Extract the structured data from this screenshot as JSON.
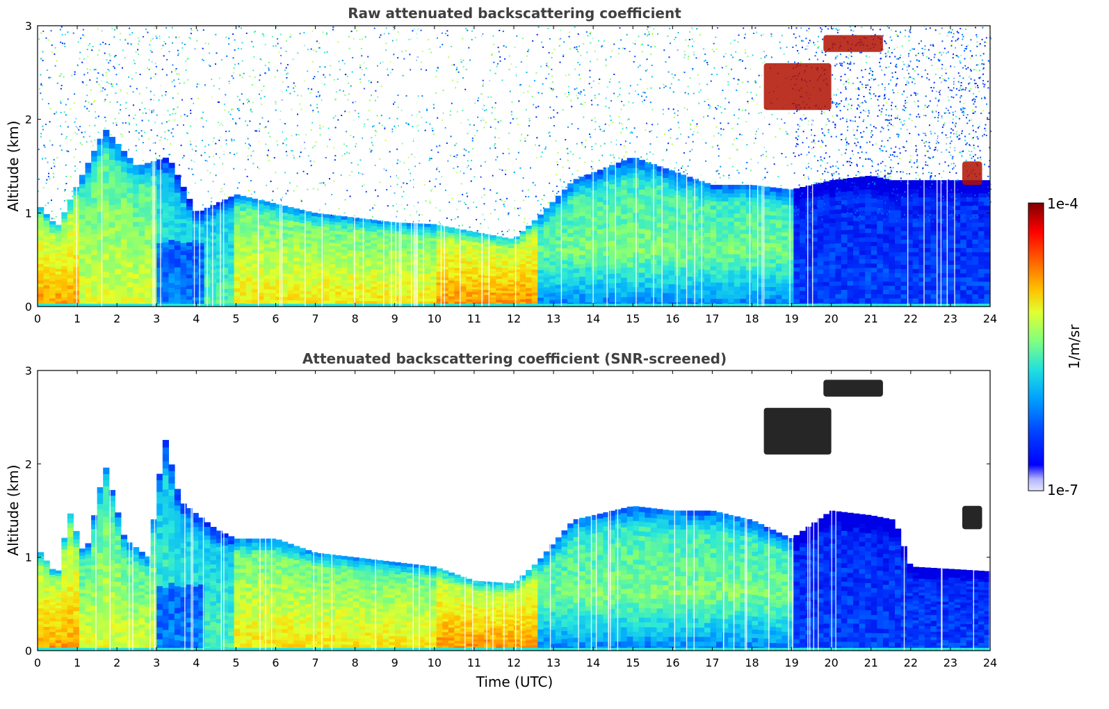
{
  "chart_data": [
    {
      "type": "heatmap",
      "title": "Raw attenuated backscattering coefficient",
      "xlabel": "",
      "ylabel": "Altitude (km)",
      "xlim": [
        0,
        24
      ],
      "ylim": [
        0,
        3
      ],
      "xticks": [
        "0",
        "1",
        "2",
        "3",
        "4",
        "5",
        "6",
        "7",
        "8",
        "9",
        "10",
        "11",
        "12",
        "13",
        "14",
        "15",
        "16",
        "17",
        "18",
        "19",
        "20",
        "21",
        "22",
        "23",
        "24"
      ],
      "yticks": [
        "0",
        "1",
        "2",
        "3"
      ],
      "screened": false,
      "boundary_layer_top_km": [
        [
          0,
          1.1
        ],
        [
          0.5,
          0.85
        ],
        [
          1,
          1.3
        ],
        [
          1.7,
          1.9
        ],
        [
          2.5,
          1.5
        ],
        [
          3.3,
          1.6
        ],
        [
          4,
          1.0
        ],
        [
          5,
          1.2
        ],
        [
          6,
          1.1
        ],
        [
          7,
          1.0
        ],
        [
          8,
          0.95
        ],
        [
          9,
          0.9
        ],
        [
          10,
          0.88
        ],
        [
          11,
          0.8
        ],
        [
          12,
          0.72
        ],
        [
          12.6,
          0.95
        ],
        [
          13.5,
          1.35
        ],
        [
          15,
          1.6
        ],
        [
          16,
          1.45
        ],
        [
          17,
          1.3
        ],
        [
          18,
          1.3
        ],
        [
          19,
          1.25
        ],
        [
          20,
          1.35
        ],
        [
          21,
          1.4
        ],
        [
          21.5,
          1.35
        ]
      ],
      "clouds": [
        {
          "t0": 19.8,
          "t1": 21.3,
          "z0": 2.72,
          "z1": 2.9,
          "level": "high"
        },
        {
          "t0": 18.3,
          "t1": 20.0,
          "z0": 2.1,
          "z1": 2.6,
          "level": "high"
        },
        {
          "t0": 23.3,
          "t1": 23.8,
          "z0": 1.3,
          "z1": 1.55,
          "level": "high"
        }
      ]
    },
    {
      "type": "heatmap",
      "title": "Attenuated backscattering coefficient (SNR-screened)",
      "xlabel": "Time (UTC)",
      "ylabel": "Altitude (km)",
      "xlim": [
        0,
        24
      ],
      "ylim": [
        0,
        3
      ],
      "xticks": [
        "0",
        "1",
        "2",
        "3",
        "4",
        "5",
        "6",
        "7",
        "8",
        "9",
        "10",
        "11",
        "12",
        "13",
        "14",
        "15",
        "16",
        "17",
        "18",
        "19",
        "20",
        "21",
        "22",
        "23",
        "24"
      ],
      "yticks": [
        "0",
        "1",
        "2",
        "3"
      ],
      "screened": true,
      "boundary_layer_top_km": [
        [
          0,
          1.1
        ],
        [
          0.5,
          0.8
        ],
        [
          0.8,
          1.5
        ],
        [
          1.2,
          1.0
        ],
        [
          1.7,
          2.0
        ],
        [
          2.2,
          1.2
        ],
        [
          2.8,
          1.0
        ],
        [
          3.2,
          2.3
        ],
        [
          3.6,
          1.6
        ],
        [
          4.5,
          1.3
        ],
        [
          5,
          1.2
        ],
        [
          6,
          1.2
        ],
        [
          7,
          1.05
        ],
        [
          8,
          1.0
        ],
        [
          9,
          0.95
        ],
        [
          10,
          0.9
        ],
        [
          11,
          0.75
        ],
        [
          12,
          0.72
        ],
        [
          12.6,
          0.95
        ],
        [
          13.5,
          1.4
        ],
        [
          15,
          1.55
        ],
        [
          16,
          1.5
        ],
        [
          17,
          1.5
        ],
        [
          18,
          1.4
        ],
        [
          19,
          1.2
        ],
        [
          20,
          1.5
        ],
        [
          21,
          1.45
        ],
        [
          21.6,
          1.4
        ],
        [
          22,
          0.9
        ],
        [
          24,
          0.85
        ]
      ],
      "clouds": [
        {
          "t0": 19.8,
          "t1": 21.3,
          "z0": 2.72,
          "z1": 2.9,
          "level": "saturated"
        },
        {
          "t0": 18.3,
          "t1": 20.0,
          "z0": 2.1,
          "z1": 2.6,
          "level": "saturated"
        },
        {
          "t0": 23.3,
          "t1": 23.8,
          "z0": 1.3,
          "z1": 1.55,
          "level": "saturated"
        }
      ]
    }
  ],
  "colorbar": {
    "label": "1/m/sr",
    "max_label": "1e-4",
    "min_label": "1e-7",
    "colors": [
      "#7f0000",
      "#ff0000",
      "#ff8000",
      "#ffd700",
      "#b0f040",
      "#40f0c0",
      "#00bfff",
      "#0050ff",
      "#0000e6",
      "#e0e0ff"
    ]
  }
}
